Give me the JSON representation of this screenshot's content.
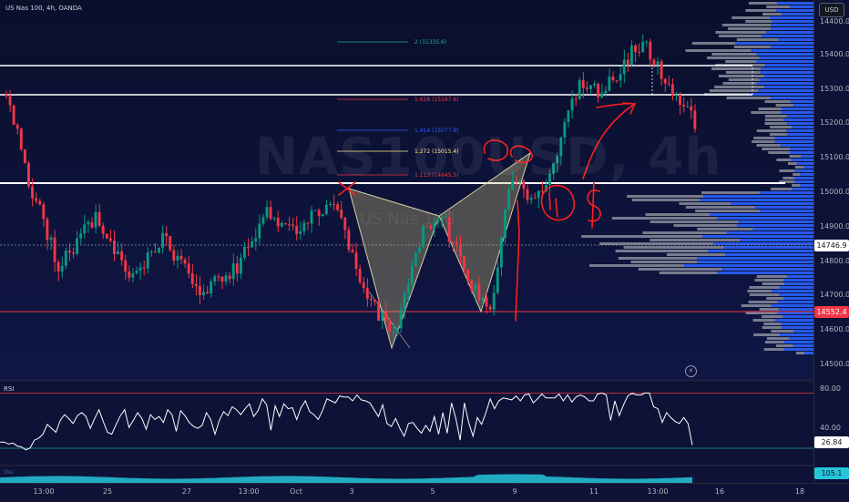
{
  "symbol_title": "US Nas 100, 4h, OANDA",
  "watermark": {
    "symbol": "NAS100USD, 4h",
    "name": "US Nas 100"
  },
  "currency": "USD",
  "price_axis": [
    "15400.0",
    "15300.0",
    "15200.0",
    "15100.0",
    "15000.0",
    "14900.0",
    "14800.0",
    "14700.0",
    "14600.0",
    "14500.0",
    "14400.0"
  ],
  "price_tags": {
    "current": {
      "value": "14746.9",
      "bg": "#ffffff",
      "fg": "#131722"
    },
    "support": {
      "value": "14552.4",
      "bg": "#f23645",
      "fg": "#ffffff"
    }
  },
  "fib_levels": [
    {
      "label": "2 (15335.6)",
      "color": "#22ab94"
    },
    {
      "label": "1.618 (15167.6)",
      "color": "#f23645"
    },
    {
      "label": "1.414 (15077.8)",
      "color": "#2962ff"
    },
    {
      "label": "1.272 (15015.4)",
      "color": "#ffeb8a"
    },
    {
      "label": "1.113 (14945.5)",
      "color": "#f23645"
    }
  ],
  "rsi": {
    "title": "RSI",
    "axis": [
      "80.00",
      "40.00"
    ],
    "value_tag": "26.84",
    "values": [
      30,
      30,
      28,
      29,
      26,
      25,
      22,
      24,
      32,
      34,
      38,
      48,
      44,
      40,
      52,
      58,
      54,
      49,
      57,
      60,
      56,
      44,
      54,
      63,
      51,
      40,
      38,
      48,
      57,
      63,
      45,
      52,
      60,
      54,
      43,
      58,
      53,
      56,
      50,
      63,
      58,
      41,
      62,
      57,
      50,
      46,
      44,
      47,
      60,
      53,
      38,
      52,
      61,
      57,
      66,
      63,
      58,
      64,
      69,
      56,
      62,
      74,
      68,
      42,
      67,
      56,
      69,
      64,
      65,
      53,
      65,
      72,
      61,
      58,
      53,
      62,
      74,
      72,
      70,
      77,
      76,
      76,
      72,
      78,
      73,
      72,
      70,
      63,
      56,
      68,
      49,
      46,
      54,
      44,
      36,
      49,
      50,
      44,
      39,
      47,
      41,
      56,
      38,
      60,
      39,
      70,
      54,
      32,
      70,
      50,
      36,
      55,
      48,
      60,
      74,
      64,
      72,
      75,
      74,
      73,
      77,
      72,
      78,
      79,
      70,
      74,
      79,
      75,
      75,
      75,
      79,
      72,
      78,
      71,
      76,
      78,
      76,
      72,
      72,
      79,
      80,
      78,
      52,
      72,
      57,
      68,
      77,
      80,
      78,
      78,
      80,
      80,
      66,
      64,
      50,
      60,
      55,
      51,
      49,
      55,
      49,
      27
    ]
  },
  "oscillator": {
    "title": "Osc",
    "value_tag": "105.1"
  },
  "time_axis": [
    "13:00",
    "25",
    "27",
    "13:00",
    "Oct",
    "3",
    "5",
    "9",
    "11",
    "13:00",
    "16",
    "18"
  ],
  "colors": {
    "up": "#089981",
    "down": "#f23645",
    "vp_gray": "#8a8e9c",
    "vp_blue": "#2962ff",
    "annot": "#ff1e1e"
  }
}
